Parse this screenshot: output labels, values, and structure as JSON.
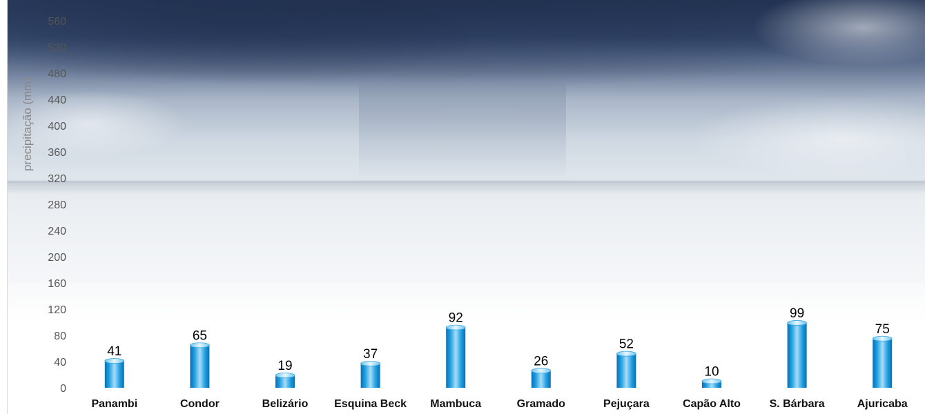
{
  "chart_data": {
    "type": "bar",
    "categories": [
      "Panambi",
      "Condor",
      "Belizário",
      "Esquina Beck",
      "Mambuca",
      "Gramado",
      "Pejuçara",
      "Capão Alto",
      "S. Bárbara",
      "Ajuricaba"
    ],
    "values": [
      41,
      65,
      19,
      37,
      92,
      26,
      52,
      10,
      99,
      75
    ],
    "title": "",
    "xlabel": "",
    "ylabel": "precipitação (mm)",
    "ylim": [
      0,
      560
    ],
    "yticks": [
      0,
      40,
      80,
      120,
      160,
      200,
      240,
      280,
      320,
      360,
      400,
      440,
      480,
      520,
      560
    ],
    "grid": false,
    "legend": "none",
    "bar_color": "#1e9ee0",
    "background": "stormy sky photo"
  }
}
